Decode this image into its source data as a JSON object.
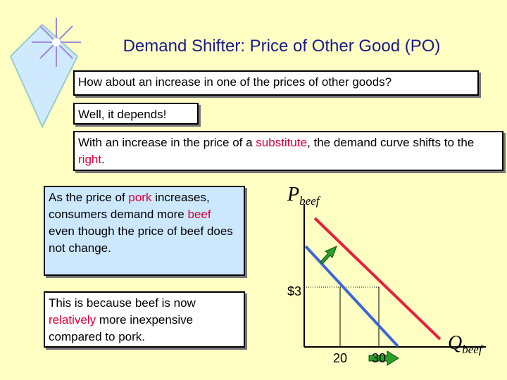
{
  "title": "Demand Shifter: Price of Other Good (PO)",
  "boxes": [
    {
      "segments": [
        {
          "text": "How about an increase in one of the prices of other goods?"
        }
      ]
    },
    {
      "segments": [
        {
          "text": "Well, it depends!"
        }
      ]
    },
    {
      "segments": [
        {
          "text": "With an increase in the price of a "
        },
        {
          "text": "substitute",
          "highlight": true
        },
        {
          "text": ", the demand curve shifts to the "
        },
        {
          "text": "right",
          "highlight": true
        },
        {
          "text": "."
        }
      ]
    },
    {
      "segments": [
        {
          "text": "As the price of "
        },
        {
          "text": "pork",
          "highlight": true
        },
        {
          "text": " increases, consumers demand more "
        },
        {
          "text": "beef",
          "highlight": true
        },
        {
          "text": " even though the price of beef does not change."
        }
      ]
    },
    {
      "segments": [
        {
          "text": "This is because beef is now "
        },
        {
          "text": "relatively",
          "highlight": true
        },
        {
          "text": " more inexpensive compared to pork."
        }
      ]
    }
  ],
  "diagram": {
    "y_axis": {
      "symbol": "P",
      "sub": "beef"
    },
    "x_axis": {
      "symbol": "Q",
      "sub": "beef"
    },
    "price_label": "$3",
    "quantity_labels": [
      "20",
      "30"
    ]
  }
}
